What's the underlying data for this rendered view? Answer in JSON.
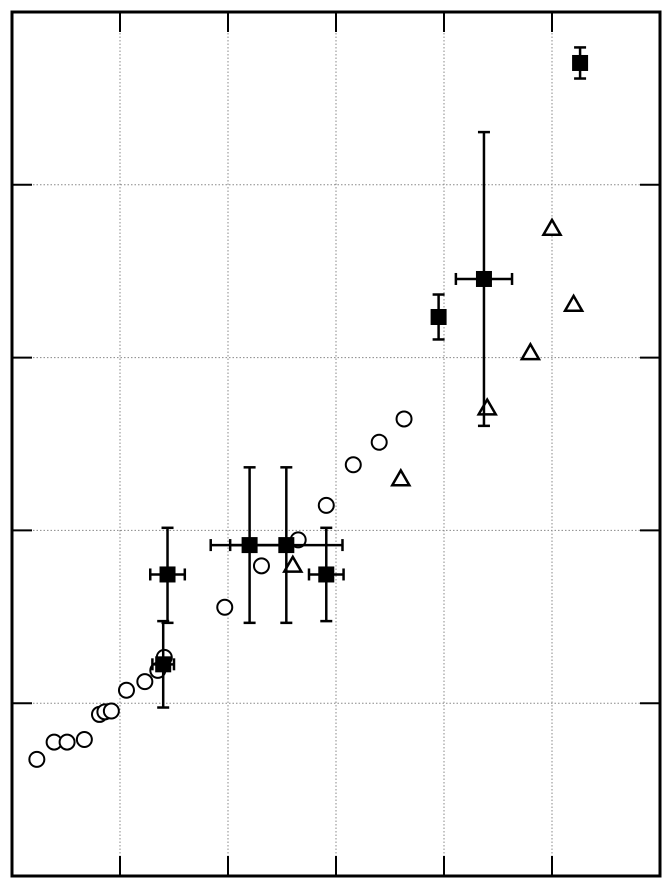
{
  "chart_data": {
    "type": "scatter",
    "title": "",
    "xlabel": "",
    "ylabel": "",
    "xlim": [
      0,
      3
    ],
    "ylim": [
      0,
      5
    ],
    "x_ticks": [
      0.5,
      1.0,
      1.5,
      2.0,
      2.5
    ],
    "y_ticks": [
      1,
      2,
      3,
      4
    ],
    "grid": true,
    "legend": "none",
    "series": [
      {
        "marker": "circle-open",
        "color": "#000000",
        "points": [
          {
            "x": 0.115,
            "y": 0.675
          },
          {
            "x": 0.195,
            "y": 0.775
          },
          {
            "x": 0.255,
            "y": 0.775
          },
          {
            "x": 0.335,
            "y": 0.79
          },
          {
            "x": 0.405,
            "y": 0.935
          },
          {
            "x": 0.43,
            "y": 0.95
          },
          {
            "x": 0.46,
            "y": 0.955
          },
          {
            "x": 0.53,
            "y": 1.075
          },
          {
            "x": 0.615,
            "y": 1.125
          },
          {
            "x": 0.675,
            "y": 1.19
          },
          {
            "x": 0.705,
            "y": 1.265
          },
          {
            "x": 0.985,
            "y": 1.555
          },
          {
            "x": 1.155,
            "y": 1.795
          },
          {
            "x": 1.325,
            "y": 1.945
          },
          {
            "x": 1.455,
            "y": 2.145
          },
          {
            "x": 1.58,
            "y": 2.38
          },
          {
            "x": 1.7,
            "y": 2.51
          },
          {
            "x": 1.815,
            "y": 2.645
          }
        ]
      },
      {
        "marker": "triangle-open",
        "color": "#000000",
        "points": [
          {
            "x": 1.3,
            "y": 1.795
          },
          {
            "x": 1.8,
            "y": 2.295
          },
          {
            "x": 2.2,
            "y": 2.705
          },
          {
            "x": 2.4,
            "y": 3.025
          },
          {
            "x": 2.5,
            "y": 3.745
          },
          {
            "x": 2.6,
            "y": 3.305
          }
        ]
      },
      {
        "marker": "square-filled",
        "color": "#000000",
        "points": [
          {
            "x": 0.7,
            "y": 1.225,
            "xerr": 0.05,
            "yerr": [
              0.25,
              0.25
            ]
          },
          {
            "x": 0.72,
            "y": 1.745,
            "xerr": 0.08,
            "yerr": [
              0.28,
              0.27
            ]
          },
          {
            "x": 1.1,
            "y": 1.915,
            "xerr": 0.18,
            "yerr": [
              0.45,
              0.45
            ]
          },
          {
            "x": 1.27,
            "y": 1.915,
            "xerr": 0.26,
            "yerr": [
              0.45,
              0.45
            ]
          },
          {
            "x": 1.455,
            "y": 1.745,
            "xerr": 0.08,
            "yerr": [
              0.27,
              0.27
            ]
          },
          {
            "x": 1.975,
            "y": 3.235,
            "xerr": 0,
            "yerr": [
              0.13,
              0.13
            ]
          },
          {
            "x": 2.185,
            "y": 3.455,
            "xerr": 0.13,
            "yerr": [
              0.85,
              0.85
            ]
          },
          {
            "x": 2.63,
            "y": 4.705,
            "xerr": 0,
            "yerr": [
              0.09,
              0.09
            ]
          }
        ]
      }
    ]
  }
}
